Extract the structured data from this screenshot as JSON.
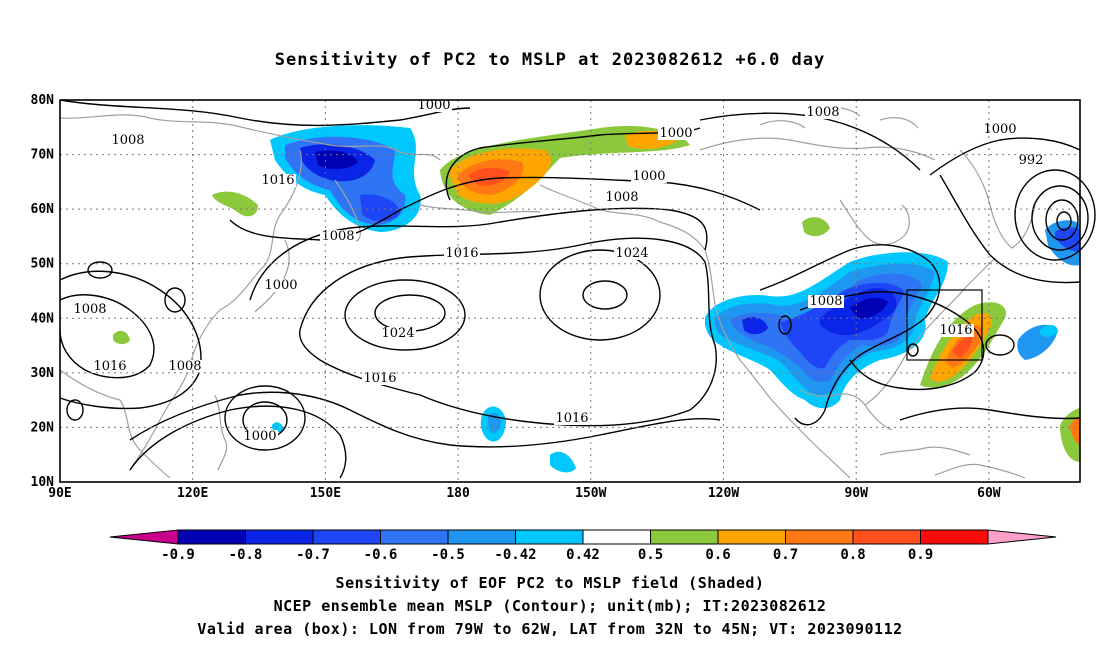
{
  "title": "Sensitivity of PC2 to MSLP at 2023082612 +6.0 day",
  "captions": {
    "line1": "Sensitivity of EOF PC2 to MSLP field (Shaded)",
    "line2": "NCEP ensemble mean MSLP (Contour); unit(mb); IT:2023082612",
    "line3": "Valid area (box): LON from 79W to 62W, LAT from 32N to 45N; VT: 2023090112"
  },
  "map": {
    "lat_labels": [
      "80N",
      "70N",
      "60N",
      "50N",
      "40N",
      "30N",
      "20N",
      "10N"
    ],
    "lon_labels": [
      "90E",
      "120E",
      "150E",
      "180",
      "150W",
      "120W",
      "90W",
      "60W"
    ],
    "contour_labels": [
      "1000",
      "1008",
      "1016",
      "1008",
      "1000",
      "1008",
      "1000",
      "1008",
      "1000",
      "992",
      "1000",
      "1008",
      "1016",
      "1024",
      "1024",
      "1016",
      "1008",
      "1016",
      "1016",
      "1008",
      "1008",
      "1016",
      "1000"
    ]
  },
  "colorbar": {
    "labels": [
      "-0.9",
      "-0.8",
      "-0.7",
      "-0.6",
      "-0.5",
      "-0.42",
      "0.42",
      "0.5",
      "0.6",
      "0.7",
      "0.8",
      "0.9"
    ],
    "colors": [
      "#0000b4",
      "#0a24e8",
      "#1e46f5",
      "#2f74f5",
      "#1f96f0",
      "#00c8ff",
      "#ffffff",
      "#8cc83c",
      "#ffa500",
      "#ff7814",
      "#ff501e",
      "#ff0a0a"
    ],
    "low_arrow_color": "#c8008c",
    "high_arrow_color": "#ffa0c8"
  }
}
